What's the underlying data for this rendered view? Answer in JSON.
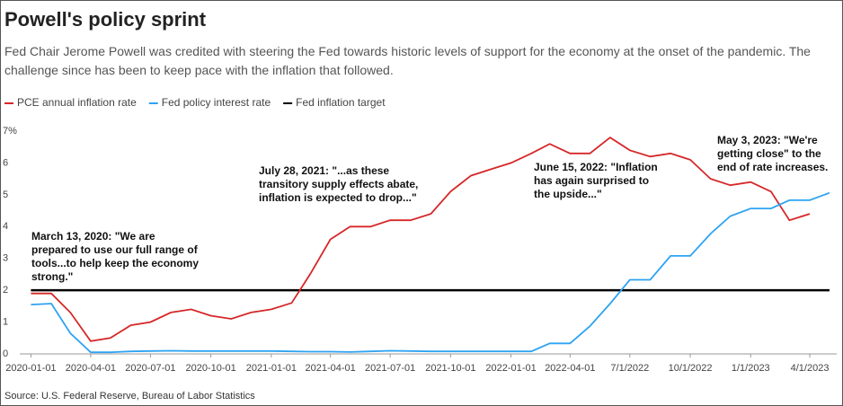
{
  "chart_data": {
    "type": "line",
    "title": "Powell's policy sprint",
    "subtitle": "Fed Chair Jerome Powell was credited with steering the Fed towards historic levels of support for the economy at the onset of the pandemic. The challenge since has been to keep pace with the inflation that followed.",
    "source": "Source: U.S. Federal Reserve, Bureau of Labor Statistics",
    "x": [
      "2020-01-01",
      "2020-02-01",
      "2020-03-01",
      "2020-04-01",
      "2020-05-01",
      "2020-06-01",
      "2020-07-01",
      "2020-08-01",
      "2020-09-01",
      "2020-10-01",
      "2020-11-01",
      "2020-12-01",
      "2021-01-01",
      "2021-02-01",
      "2021-03-01",
      "2021-04-01",
      "2021-05-01",
      "2021-06-01",
      "2021-07-01",
      "2021-08-01",
      "2021-09-01",
      "2021-10-01",
      "2021-11-01",
      "2021-12-01",
      "2022-01-01",
      "2022-02-01",
      "2022-03-01",
      "2022-04-01",
      "2022-05-01",
      "2022-06-01",
      "2022-07-01",
      "2022-08-01",
      "2022-09-01",
      "2022-10-01",
      "2022-11-01",
      "2022-12-01",
      "2023-01-01",
      "2023-02-01",
      "2023-03-01",
      "2023-04-01",
      "2023-05-01"
    ],
    "series": [
      {
        "name": "PCE annual inflation rate",
        "color": "#d62728",
        "values": [
          1.9,
          1.9,
          1.3,
          0.4,
          0.5,
          0.9,
          1.0,
          1.3,
          1.4,
          1.2,
          1.1,
          1.3,
          1.4,
          1.6,
          2.5,
          3.6,
          4.0,
          4.0,
          4.2,
          4.2,
          4.4,
          5.1,
          5.6,
          5.8,
          6.0,
          6.3,
          6.6,
          6.3,
          6.3,
          6.8,
          6.4,
          6.2,
          6.3,
          6.1,
          5.5,
          5.3,
          5.4,
          5.1,
          4.2,
          4.4,
          null
        ]
      },
      {
        "name": "Fed policy interest rate",
        "color": "#2ea3f2",
        "values": [
          1.55,
          1.58,
          0.65,
          0.05,
          0.05,
          0.08,
          0.09,
          0.1,
          0.09,
          0.09,
          0.09,
          0.09,
          0.09,
          0.08,
          0.07,
          0.07,
          0.06,
          0.08,
          0.1,
          0.09,
          0.08,
          0.08,
          0.08,
          0.08,
          0.08,
          0.08,
          0.33,
          0.33,
          0.87,
          1.58,
          2.33,
          2.33,
          3.08,
          3.08,
          3.78,
          4.33,
          4.57,
          4.57,
          4.83,
          4.83,
          5.06
        ]
      },
      {
        "name": "Fed inflation target",
        "color": "#000000",
        "values": [
          2,
          2,
          2,
          2,
          2,
          2,
          2,
          2,
          2,
          2,
          2,
          2,
          2,
          2,
          2,
          2,
          2,
          2,
          2,
          2,
          2,
          2,
          2,
          2,
          2,
          2,
          2,
          2,
          2,
          2,
          2,
          2,
          2,
          2,
          2,
          2,
          2,
          2,
          2,
          2,
          2
        ]
      }
    ],
    "xlim": [
      "2019-12-15",
      "2023-05-12"
    ],
    "xticks": [
      "2020-01-01",
      "2020-04-01",
      "2020-07-01",
      "2020-10-01",
      "2021-01-01",
      "2021-04-01",
      "2021-07-01",
      "2021-10-01",
      "2022-01-01",
      "2022-04-01",
      {
        "value": "2022-07-01",
        "label": "7/1/2022"
      },
      {
        "value": "2022-10-01",
        "label": "10/1/2022"
      },
      {
        "value": "2023-01-01",
        "label": "1/1/2023"
      },
      {
        "value": "2023-04-01",
        "label": "4/1/2023"
      }
    ],
    "ylim": [
      0,
      7
    ],
    "yticks": [
      0,
      1,
      2,
      3,
      4,
      5,
      6,
      {
        "value": 7,
        "label": "7%"
      }
    ],
    "grid": false,
    "legend": "top-left",
    "annotations": [
      [
        "March 13, 2020: \"We are",
        "prepared to use our full range of",
        "tools...to help keep the economy",
        "strong.\""
      ],
      [
        "July 28, 2021: \"...as these",
        "transitory supply effects abate,",
        "inflation is expected to drop...\""
      ],
      [
        "June 15, 2022: \"Inflation",
        "has again surprised to",
        "the upside...\""
      ],
      [
        "May 3, 2023: \"We're",
        "getting close\" to the",
        "end of rate increases."
      ]
    ]
  }
}
